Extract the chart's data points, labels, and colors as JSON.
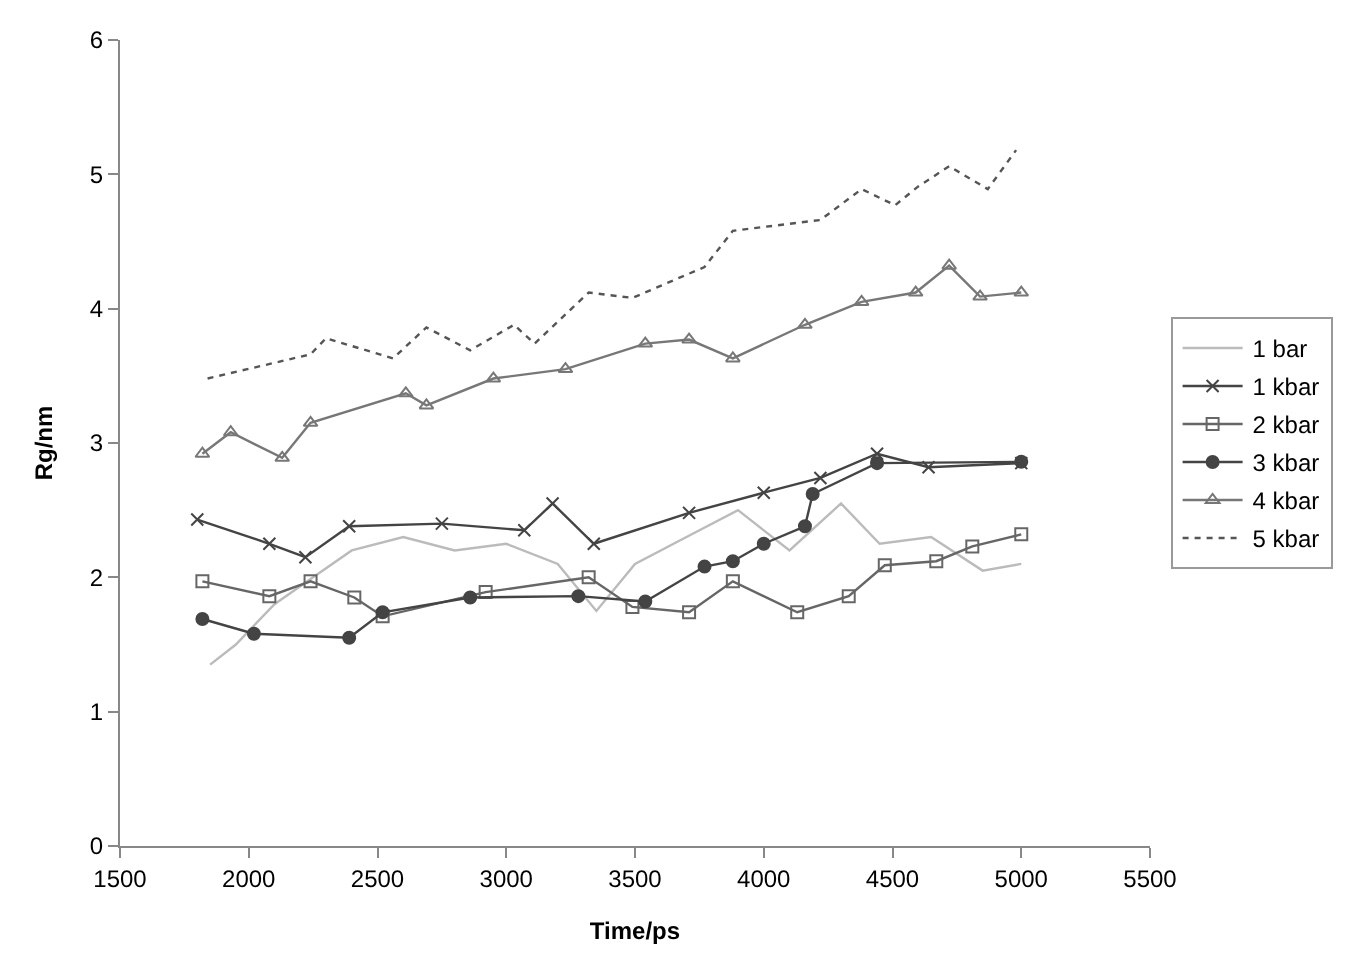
{
  "chart_data": {
    "type": "line",
    "xlabel": "Time/ps",
    "ylabel": "Rg/nm",
    "xlim": [
      1500,
      5500
    ],
    "xticks": [
      1500,
      2000,
      2500,
      3000,
      3500,
      4000,
      4500,
      5000,
      5500
    ],
    "ylim": [
      0,
      6
    ],
    "yticks": [
      0,
      1,
      2,
      3,
      4,
      5,
      6
    ],
    "grid": false,
    "legend": "right",
    "series": [
      {
        "name": "1 bar",
        "color": "#bbbbbb",
        "marker": "none",
        "line_style": "solid",
        "x": [
          1850,
          1950,
          2100,
          2250,
          2400,
          2600,
          2800,
          3000,
          3200,
          3350,
          3500,
          3700,
          3900,
          4100,
          4300,
          4450,
          4650,
          4850,
          5000
        ],
        "values": [
          1.35,
          1.5,
          1.8,
          2.0,
          2.2,
          2.3,
          2.2,
          2.25,
          2.1,
          1.75,
          2.1,
          2.3,
          2.5,
          2.2,
          2.55,
          2.25,
          2.3,
          2.05,
          2.1
        ]
      },
      {
        "name": "1 kbar",
        "color": "#444444",
        "marker": "cross",
        "line_style": "solid",
        "x": [
          1800,
          2080,
          2220,
          2390,
          2750,
          3070,
          3180,
          3340,
          3710,
          4000,
          4220,
          4440,
          4640,
          5000
        ],
        "values": [
          2.43,
          2.25,
          2.15,
          2.38,
          2.4,
          2.35,
          2.55,
          2.25,
          2.48,
          2.63,
          2.74,
          2.92,
          2.82,
          2.85
        ]
      },
      {
        "name": "2 kbar",
        "color": "#666666",
        "marker": "square",
        "line_style": "solid",
        "x": [
          1820,
          2080,
          2240,
          2410,
          2520,
          2920,
          3320,
          3490,
          3710,
          3880,
          4130,
          4330,
          4470,
          4670,
          4810,
          5000
        ],
        "values": [
          1.97,
          1.86,
          1.97,
          1.85,
          1.71,
          1.89,
          2.0,
          1.78,
          1.74,
          1.97,
          1.74,
          1.86,
          2.09,
          2.12,
          2.23,
          2.32
        ]
      },
      {
        "name": "3 kbar",
        "color": "#444444",
        "marker": "circle",
        "line_style": "solid",
        "x": [
          1820,
          2020,
          2390,
          2520,
          2860,
          3280,
          3540,
          3770,
          3880,
          4000,
          4160,
          4190,
          4440,
          5000
        ],
        "values": [
          1.69,
          1.58,
          1.55,
          1.74,
          1.85,
          1.86,
          1.82,
          2.08,
          2.12,
          2.25,
          2.38,
          2.62,
          2.85,
          2.86
        ]
      },
      {
        "name": "4 kbar",
        "color": "#777777",
        "marker": "triangle",
        "line_style": "solid",
        "x": [
          1820,
          1930,
          2130,
          2240,
          2610,
          2690,
          2950,
          3230,
          3540,
          3710,
          3880,
          4160,
          4380,
          4590,
          4720,
          4840,
          5000
        ],
        "values": [
          2.92,
          3.08,
          2.89,
          3.15,
          3.37,
          3.28,
          3.48,
          3.55,
          3.74,
          3.77,
          3.63,
          3.88,
          4.05,
          4.12,
          4.32,
          4.09,
          4.12
        ]
      },
      {
        "name": "5 kbar",
        "color": "#555555",
        "marker": "none",
        "line_style": "dotted",
        "x": [
          1840,
          2240,
          2300,
          2560,
          2690,
          2860,
          3030,
          3110,
          3320,
          3490,
          3770,
          3880,
          4220,
          4380,
          4510,
          4600,
          4720,
          4870,
          4980
        ],
        "values": [
          3.48,
          3.66,
          3.78,
          3.63,
          3.86,
          3.69,
          3.88,
          3.74,
          4.12,
          4.08,
          4.31,
          4.58,
          4.66,
          4.89,
          4.77,
          4.91,
          5.06,
          4.89,
          5.18
        ]
      }
    ]
  }
}
